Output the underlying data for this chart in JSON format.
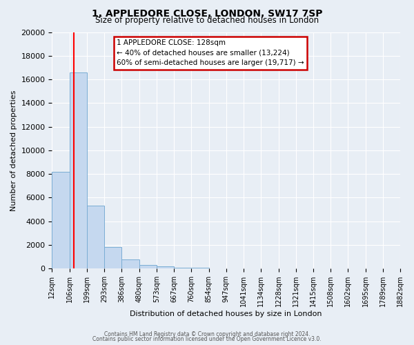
{
  "title": "1, APPLEDORE CLOSE, LONDON, SW17 7SP",
  "subtitle": "Size of property relative to detached houses in London",
  "xlabel": "Distribution of detached houses by size in London",
  "ylabel": "Number of detached properties",
  "bin_labels": [
    "12sqm",
    "106sqm",
    "199sqm",
    "293sqm",
    "386sqm",
    "480sqm",
    "573sqm",
    "667sqm",
    "760sqm",
    "854sqm",
    "947sqm",
    "1041sqm",
    "1134sqm",
    "1228sqm",
    "1321sqm",
    "1415sqm",
    "1508sqm",
    "1602sqm",
    "1695sqm",
    "1789sqm",
    "1882sqm"
  ],
  "bin_edges": [
    12,
    106,
    199,
    293,
    386,
    480,
    573,
    667,
    760,
    854,
    947,
    1041,
    1134,
    1228,
    1321,
    1415,
    1508,
    1602,
    1695,
    1789,
    1882
  ],
  "bar_heights": [
    8200,
    16600,
    5300,
    1800,
    800,
    300,
    200,
    100,
    100,
    0,
    0,
    0,
    0,
    0,
    0,
    0,
    0,
    0,
    0,
    0
  ],
  "bar_color": "#c5d8ef",
  "bar_edge_color": "#7aadd4",
  "red_line_x": 128,
  "ylim": [
    0,
    20000
  ],
  "yticks": [
    0,
    2000,
    4000,
    6000,
    8000,
    10000,
    12000,
    14000,
    16000,
    18000,
    20000
  ],
  "annotation_title": "1 APPLEDORE CLOSE: 128sqm",
  "annotation_line1": "← 40% of detached houses are smaller (13,224)",
  "annotation_line2": "60% of semi-detached houses are larger (19,717) →",
  "annotation_box_color": "#ffffff",
  "annotation_box_edge": "#cc0000",
  "footer1": "Contains HM Land Registry data © Crown copyright and database right 2024.",
  "footer2": "Contains public sector information licensed under the Open Government Licence v3.0.",
  "background_color": "#e8eef5",
  "grid_color": "#ffffff"
}
